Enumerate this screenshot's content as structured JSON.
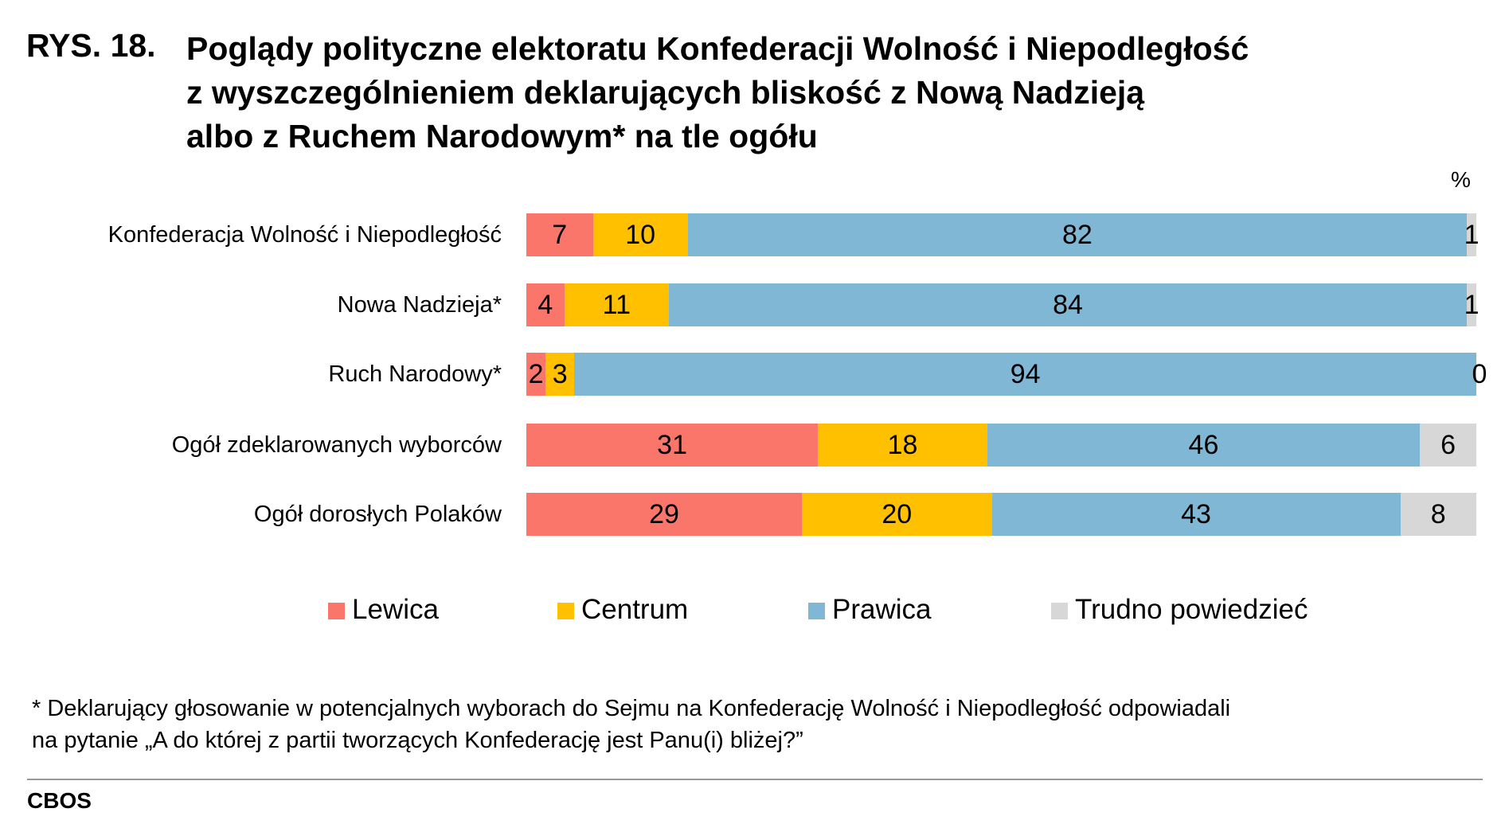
{
  "figure_label": "RYS. 18.",
  "chart_data": {
    "type": "bar",
    "orientation": "horizontal-stacked",
    "title": "Poglądy polityczne elektoratu Konfederacji Wolność i Niepodległość\nz wyszczególnieniem deklarujących bliskość z Nową Nadzieją\nalbo z Ruchem Narodowym* na tle ogółu",
    "unit": "%",
    "categories": [
      "Konfederacja Wolność i Niepodległość",
      "Nowa Nadzieja*",
      "Ruch Narodowy*",
      "Ogół zdeklarowanych wyborców",
      "Ogół dorosłych Polaków"
    ],
    "series": [
      {
        "name": "Lewica",
        "color": "#fa766b",
        "values": [
          7,
          4,
          2,
          31,
          29
        ]
      },
      {
        "name": "Centrum",
        "color": "#ffc000",
        "values": [
          10,
          11,
          3,
          18,
          20
        ]
      },
      {
        "name": "Prawica",
        "color": "#7fb7d5",
        "values": [
          82,
          84,
          94,
          46,
          43
        ]
      },
      {
        "name": "Trudno powiedzieć",
        "color": "#d7d7d7",
        "values": [
          1,
          1,
          0,
          6,
          8
        ]
      }
    ],
    "legend_position": "bottom",
    "grid": false
  },
  "footnote": "* Deklarujący głosowanie w potencjalnych wyborach do Sejmu na Konfederację Wolność i Niepodległość odpowiadali\n na pytanie  „A do której z partii tworzących Konfederację jest Panu(i) bliżej?”",
  "source": "CBOS"
}
